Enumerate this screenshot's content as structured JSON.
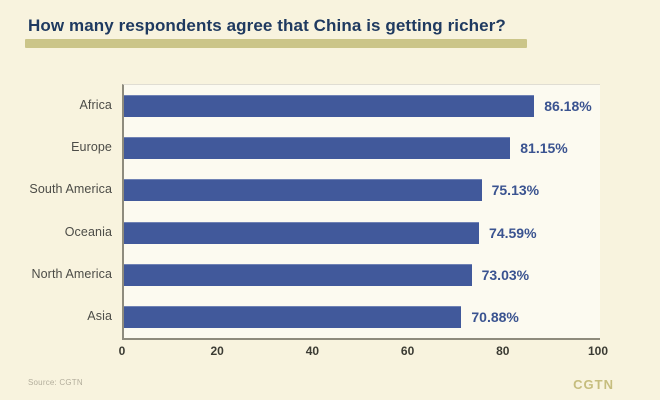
{
  "title": "How many respondents agree that China is getting richer?",
  "source_note": "Source: CGTN",
  "brand": "CGTN",
  "colors": {
    "background": "#f8f3de",
    "plot_background": "#fcfaf0",
    "bar": "#41599b",
    "title_text": "#1f3a60",
    "title_highlight": "#cbc589",
    "value_label": "#3a5390",
    "category_label": "#4c4c47",
    "axis_line": "#8e8b7d",
    "tick_label": "#3b3b33",
    "brand_color": "#c6bd7e"
  },
  "chart_data": {
    "type": "bar",
    "orientation": "horizontal",
    "title": "How many respondents agree that China is getting richer?",
    "categories": [
      "Africa",
      "Europe",
      "South America",
      "Oceania",
      "North America",
      "Asia"
    ],
    "values": [
      86.18,
      81.15,
      75.13,
      74.59,
      73.03,
      70.88
    ],
    "value_labels": [
      "86.18%",
      "81.15%",
      "75.13%",
      "74.59%",
      "73.03%",
      "70.88%"
    ],
    "xlabel": "",
    "ylabel": "",
    "xlim": [
      0,
      100
    ],
    "x_ticks": [
      0,
      20,
      40,
      60,
      80,
      100
    ],
    "grid": false,
    "legend": false,
    "bar_order": "descending"
  }
}
